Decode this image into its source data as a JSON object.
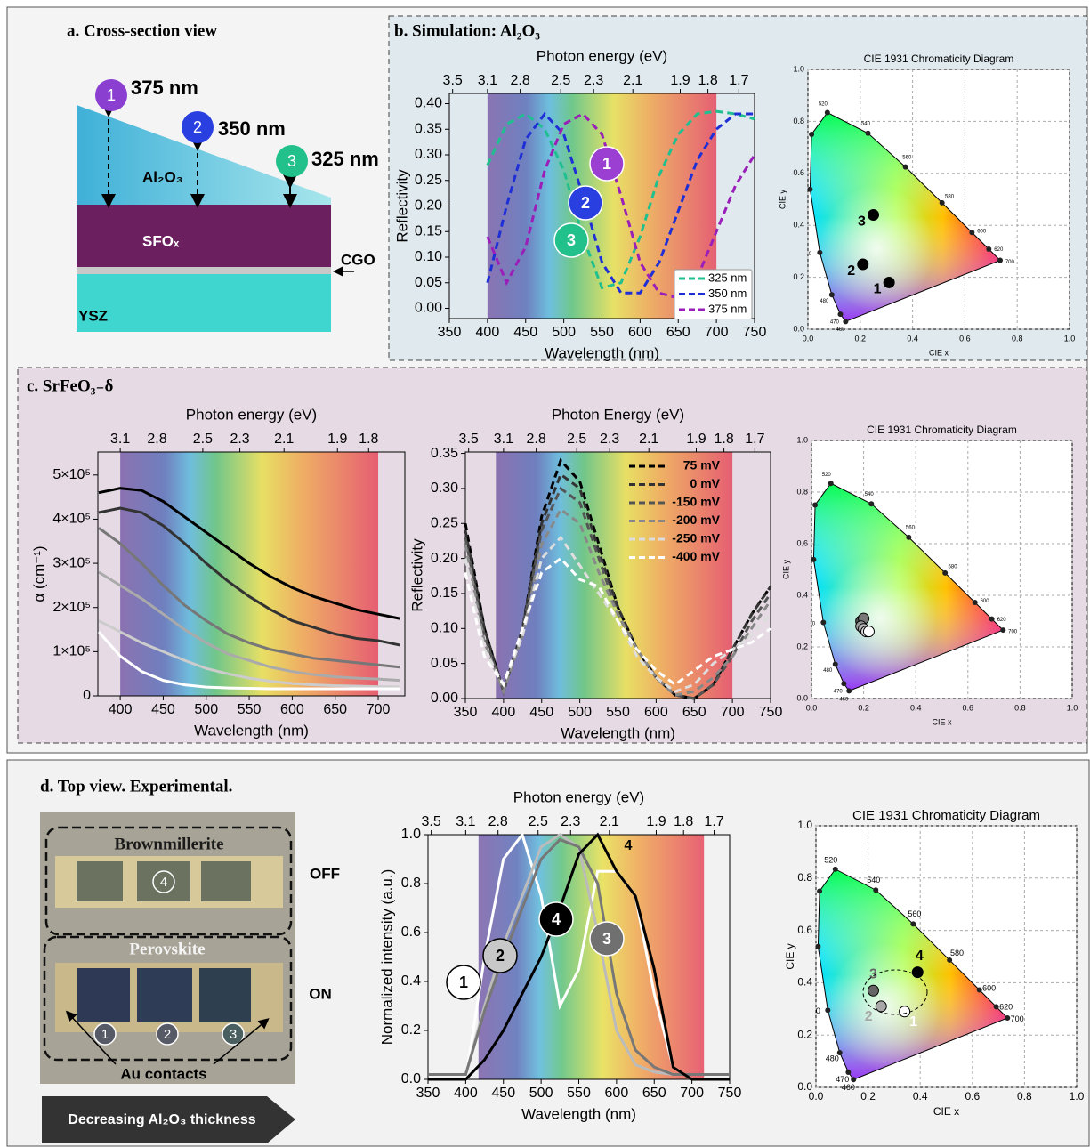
{
  "panel_a": {
    "title": "a. Cross-section view",
    "markers": [
      "1",
      "2",
      "3"
    ],
    "thickness_labels": [
      "375 nm",
      "350 nm",
      "325 nm"
    ],
    "layers": {
      "top": "Al₂O₃",
      "film": "SFOₓ",
      "interlayer": "CGO",
      "substrate": "YSZ"
    }
  },
  "panel_b": {
    "title": "b. Simulation: Al₂O₃"
  },
  "panel_c": {
    "title": "c. SrFeO₃₋δ"
  },
  "panel_d": {
    "title": "d. Top view. Experimental.",
    "phases": [
      "Brownmillerite",
      "Perovskite"
    ],
    "states": [
      "OFF",
      "ON"
    ],
    "markers": [
      "4",
      "1",
      "2",
      "3"
    ],
    "contacts": "Au contacts",
    "arrow": "Decreasing Al₂O₃ thickness"
  },
  "cie_locus": {
    "labels": [
      "460",
      "470",
      "480",
      "0",
      null,
      null,
      "520",
      "540",
      "560",
      "580",
      "600",
      "620",
      "700"
    ],
    "x": [
      0.144,
      0.1241,
      0.0913,
      0.0454,
      0.0082,
      0.0139,
      0.0743,
      0.2296,
      0.3731,
      0.5125,
      0.627,
      0.6915,
      0.7347
    ],
    "y": [
      0.0297,
      0.0578,
      0.1327,
      0.295,
      0.5384,
      0.7502,
      0.8338,
      0.7543,
      0.6245,
      0.4866,
      0.3725,
      0.3083,
      0.2653
    ]
  },
  "chart_data": [
    {
      "type": "line",
      "x2label": "Photon energy (eV)",
      "xlabel": "Wavelength (nm)",
      "ylabel": "Reflectivity",
      "dashed": true,
      "legend": "lower right",
      "legend_frame": true,
      "x": [
        400,
        425,
        450,
        475,
        500,
        525,
        550,
        575,
        600,
        625,
        650,
        675,
        700,
        725,
        750
      ],
      "series": [
        {
          "name": "325 nm",
          "color": "#1fbf8f",
          "values": [
            0.28,
            0.36,
            0.38,
            0.35,
            0.27,
            0.14,
            0.04,
            0.05,
            0.14,
            0.26,
            0.34,
            0.38,
            0.385,
            0.38,
            0.37
          ]
        },
        {
          "name": "350 nm",
          "color": "#1f2fd6",
          "values": [
            0.05,
            0.2,
            0.33,
            0.38,
            0.34,
            0.22,
            0.09,
            0.03,
            0.03,
            0.09,
            0.19,
            0.29,
            0.35,
            0.38,
            0.38
          ]
        },
        {
          "name": "375 nm",
          "color": "#9a1fb8",
          "values": [
            0.14,
            0.05,
            0.12,
            0.27,
            0.36,
            0.38,
            0.34,
            0.22,
            0.09,
            0.03,
            0.02,
            0.06,
            0.15,
            0.24,
            0.3
          ]
        }
      ],
      "xlim": [
        350,
        750
      ],
      "ylim": [
        -0.02,
        0.42
      ],
      "xticks": [
        350,
        400,
        450,
        500,
        550,
        600,
        650,
        700,
        750
      ],
      "yticks": [
        {
          "value": 0,
          "label": "0.00"
        },
        0.05,
        {
          "value": 0.1,
          "label": "0.10"
        },
        0.15,
        {
          "value": 0.2,
          "label": "0.20"
        },
        0.25,
        {
          "value": 0.3,
          "label": "0.30"
        },
        0.35,
        {
          "value": 0.4,
          "label": "0.40"
        }
      ],
      "x2ticks": [
        3.5,
        3.1,
        2.8,
        2.5,
        2.3,
        2.1,
        1.9,
        1.8,
        1.7
      ],
      "spectrum": [
        400,
        700
      ],
      "annotations": [
        {
          "text": "1",
          "color": "#9a3fd1"
        },
        {
          "text": "2",
          "color": "#2a3fe0"
        },
        {
          "text": "3",
          "color": "#22c08a"
        }
      ]
    },
    {
      "type": "scatter",
      "title": "CIE 1931 Chromaticity Diagram",
      "xlabel": "CIE x",
      "ylabel": "CIE y",
      "grid": true,
      "xlim": [
        0,
        1
      ],
      "ylim": [
        0,
        1
      ],
      "xticks": [
        {
          "value": 0,
          "label": "0.0"
        },
        0.2,
        0.4,
        0.6,
        0.8,
        {
          "value": 1,
          "label": "1.0"
        }
      ],
      "yticks": [
        {
          "value": 0,
          "label": "0.0"
        },
        0.2,
        0.4,
        0.6,
        0.8,
        {
          "value": 1,
          "label": "1.0"
        }
      ],
      "series": [
        {
          "color": "#000000",
          "x": [
            0.31,
            0.21,
            0.25
          ],
          "y": [
            0.18,
            0.25,
            0.44
          ],
          "labels": [
            "1",
            "2",
            "3"
          ]
        }
      ]
    },
    {
      "type": "line",
      "x2label": "Photon energy (eV)",
      "xlabel": "Wavelength (nm)",
      "ylabel": "α (cm⁻¹)",
      "dashed": false,
      "x": [
        375,
        400,
        425,
        450,
        475,
        500,
        525,
        550,
        575,
        600,
        625,
        650,
        675,
        700,
        725
      ],
      "series": [
        {
          "color": "#000000",
          "values": [
            460000,
            470000,
            465000,
            440000,
            405000,
            370000,
            335000,
            300000,
            270000,
            245000,
            225000,
            210000,
            195000,
            185000,
            175000
          ]
        },
        {
          "color": "#333333",
          "values": [
            415000,
            425000,
            415000,
            385000,
            345000,
            300000,
            260000,
            225000,
            195000,
            170000,
            155000,
            140000,
            130000,
            125000,
            115000
          ]
        },
        {
          "color": "#777777",
          "values": [
            380000,
            345000,
            300000,
            250000,
            205000,
            170000,
            140000,
            120000,
            105000,
            95000,
            85000,
            80000,
            75000,
            70000,
            65000
          ]
        },
        {
          "color": "#aaaaaa",
          "values": [
            280000,
            250000,
            220000,
            185000,
            150000,
            120000,
            95000,
            80000,
            65000,
            55000,
            48000,
            43000,
            40000,
            38000,
            35000
          ]
        },
        {
          "color": "#cccccc",
          "values": [
            170000,
            145000,
            120000,
            100000,
            80000,
            62000,
            50000,
            40000,
            33000,
            28000,
            25000,
            23000,
            22000,
            21000,
            20000
          ]
        },
        {
          "color": "#ffffff",
          "values": [
            145000,
            90000,
            55000,
            35000,
            25000,
            20000,
            18000,
            17000,
            16000,
            16000,
            16000,
            16000,
            16000,
            16000,
            16000
          ]
        }
      ],
      "xlim": [
        374,
        731
      ],
      "ylim": [
        0,
        552000
      ],
      "xticks": [
        400,
        450,
        500,
        550,
        600,
        650,
        700
      ],
      "yticks": [
        0,
        {
          "value": 100000,
          "label": "1×10⁵"
        },
        {
          "value": 200000,
          "label": "2×10⁵"
        },
        {
          "value": 300000,
          "label": "3×10⁵"
        },
        {
          "value": 400000,
          "label": "4×10⁵"
        },
        {
          "value": 500000,
          "label": "5×10⁵"
        }
      ],
      "x2ticks": [
        3.1,
        2.8,
        2.5,
        2.3,
        2.1,
        1.9,
        1.8
      ],
      "spectrum": [
        400,
        700
      ]
    },
    {
      "type": "line",
      "x2label": "Photon Energy (eV)",
      "xlabel": "Wavelength (nm)",
      "ylabel": "Reflectivity",
      "dashed": true,
      "legend": "upper right",
      "legend_frame": false,
      "x": [
        350,
        375,
        400,
        425,
        450,
        475,
        500,
        525,
        550,
        575,
        600,
        625,
        650,
        675,
        700,
        725,
        750
      ],
      "series": [
        {
          "name": "75 mV",
          "color": "#000000",
          "values": [
            0.25,
            0.1,
            0.01,
            0.1,
            0.26,
            0.34,
            0.31,
            0.22,
            0.13,
            0.07,
            0.03,
            0.005,
            0,
            0.02,
            0.07,
            0.12,
            0.16
          ]
        },
        {
          "name": "0 mV",
          "color": "#333333",
          "values": [
            0.24,
            0.1,
            0.01,
            0.1,
            0.25,
            0.32,
            0.3,
            0.21,
            0.13,
            0.07,
            0.03,
            0.005,
            0,
            0.02,
            0.07,
            0.12,
            0.16
          ]
        },
        {
          "name": "-150 mV",
          "color": "#555555",
          "values": [
            0.23,
            0.09,
            0.01,
            0.1,
            0.24,
            0.3,
            0.28,
            0.2,
            0.12,
            0.07,
            0.03,
            0.005,
            0,
            0.02,
            0.06,
            0.11,
            0.15
          ]
        },
        {
          "name": "-200 mV",
          "color": "#888888",
          "values": [
            0.22,
            0.08,
            0.01,
            0.09,
            0.22,
            0.27,
            0.25,
            0.18,
            0.12,
            0.07,
            0.03,
            0.005,
            0.01,
            0.03,
            0.06,
            0.1,
            0.14
          ]
        },
        {
          "name": "-250 mV",
          "color": "#dddddd",
          "values": [
            0.2,
            0.07,
            0.02,
            0.09,
            0.2,
            0.23,
            0.19,
            0.15,
            0.11,
            0.06,
            0.03,
            0.01,
            0.02,
            0.05,
            0.07,
            0.09,
            0.12
          ]
        },
        {
          "name": "-400 mV",
          "color": "#ffffff",
          "values": [
            0.18,
            0.06,
            0.02,
            0.1,
            0.18,
            0.2,
            0.17,
            0.16,
            0.11,
            0.07,
            0.04,
            0.02,
            0.04,
            0.06,
            0.07,
            0.08,
            0.1
          ]
        }
      ],
      "xlim": [
        350,
        750
      ],
      "ylim": [
        0,
        0.352
      ],
      "xticks": [
        350,
        400,
        450,
        500,
        550,
        600,
        650,
        700,
        750
      ],
      "yticks": [
        {
          "value": 0,
          "label": "0.00"
        },
        0.05,
        {
          "value": 0.1,
          "label": "0.10"
        },
        0.15,
        {
          "value": 0.2,
          "label": "0.20"
        },
        0.25,
        {
          "value": 0.3,
          "label": "0.30"
        },
        0.35
      ],
      "x2ticks": [
        3.5,
        3.1,
        2.8,
        2.5,
        2.3,
        2.1,
        1.9,
        1.8,
        1.7
      ],
      "spectrum": [
        390,
        700
      ]
    },
    {
      "type": "scatter",
      "title": "CIE 1931 Chromaticity Diagram",
      "xlabel": "CIE x",
      "ylabel": "CIE y",
      "grid": true,
      "xlim": [
        0,
        1
      ],
      "ylim": [
        0,
        1
      ],
      "xticks": [
        {
          "value": 0,
          "label": "0.0"
        },
        0.2,
        0.4,
        0.6,
        0.8,
        {
          "value": 1,
          "label": "1.0"
        }
      ],
      "yticks": [
        {
          "value": 0,
          "label": "0.0"
        },
        0.2,
        0.4,
        0.6,
        0.8,
        {
          "value": 1,
          "label": "1.0"
        }
      ],
      "series": [
        {
          "color": "#555555",
          "x": [
            0.19
          ],
          "y": [
            0.3
          ]
        },
        {
          "color": "#777777",
          "x": [
            0.2
          ],
          "y": [
            0.31
          ]
        },
        {
          "color": "#999999",
          "x": [
            0.19
          ],
          "y": [
            0.28
          ]
        },
        {
          "color": "#bbbbbb",
          "x": [
            0.2
          ],
          "y": [
            0.27
          ]
        },
        {
          "color": "#dddddd",
          "x": [
            0.21
          ],
          "y": [
            0.26
          ]
        },
        {
          "color": "#ffffff",
          "x": [
            0.22
          ],
          "y": [
            0.26
          ]
        }
      ]
    },
    {
      "type": "line",
      "x2label": "Photon energy (eV)",
      "xlabel": "Wavelength (nm)",
      "ylabel": "Normalized intensity (a.u.)",
      "dashed": false,
      "x": [
        350,
        375,
        400,
        425,
        450,
        475,
        500,
        525,
        550,
        575,
        600,
        625,
        650,
        675,
        700,
        725,
        750
      ],
      "series": [
        {
          "color": "#ffffff",
          "values": [
            0,
            0,
            0,
            0.5,
            0.9,
            1,
            0.75,
            0.3,
            0.45,
            0.85,
            0.85,
            0.75,
            0.35,
            0.05,
            0,
            0,
            0
          ]
        },
        {
          "color": "#bbbbbb",
          "values": [
            0.02,
            0.02,
            0.02,
            0.3,
            0.55,
            0.75,
            0.95,
            1,
            0.95,
            0.6,
            0.2,
            0.06,
            0.03,
            0.02,
            0.02,
            0.02,
            0.02
          ]
        },
        {
          "color": "#777777",
          "values": [
            0.02,
            0.02,
            0.02,
            0.28,
            0.5,
            0.7,
            0.9,
            0.98,
            0.95,
            0.8,
            0.35,
            0.12,
            0.05,
            0.02,
            0.02,
            0.02,
            0.02
          ]
        },
        {
          "color": "#000000",
          "values": [
            0,
            0,
            0,
            0.08,
            0.2,
            0.35,
            0.5,
            0.7,
            0.92,
            1,
            0.85,
            0.75,
            0.45,
            0.05,
            0,
            0,
            0
          ]
        }
      ],
      "xlim": [
        350,
        750
      ],
      "ylim": [
        0,
        1
      ],
      "xticks": [
        350,
        400,
        450,
        500,
        550,
        600,
        650,
        700,
        750
      ],
      "yticks": [
        {
          "value": 0,
          "label": "0.0"
        },
        0.2,
        0.4,
        0.6,
        0.8,
        {
          "value": 1,
          "label": "1.0"
        }
      ],
      "x2ticks": [
        3.5,
        3.1,
        2.8,
        2.5,
        2.3,
        2.1,
        1.9,
        1.8,
        1.7
      ],
      "spectrum": [
        417,
        716
      ],
      "annotations": [
        {
          "text": "1",
          "color": "#ffffff"
        },
        {
          "text": "2",
          "color": "#c8c8c8"
        },
        {
          "text": "3",
          "color": "#707070"
        },
        {
          "text": "4",
          "color": "#000000"
        },
        {
          "text": "4"
        }
      ]
    },
    {
      "type": "scatter",
      "title": "CIE 1931 Chromaticity Diagram",
      "xlabel": "CIE x",
      "ylabel": "CIE y",
      "grid": true,
      "xlim": [
        0,
        1
      ],
      "ylim": [
        0,
        1
      ],
      "xticks": [
        {
          "value": 0,
          "label": "0.0"
        },
        0.2,
        0.4,
        0.6,
        0.8,
        {
          "value": 1,
          "label": "1.0"
        }
      ],
      "yticks": [
        {
          "value": 0,
          "label": "0.0"
        },
        0.2,
        0.4,
        0.6,
        0.8,
        {
          "value": 1,
          "label": "1.0"
        }
      ],
      "series": [
        {
          "color": "#ffffff",
          "x": [
            0.34
          ],
          "y": [
            0.29
          ],
          "labels": [
            "1"
          ]
        },
        {
          "color": "#a8a8a8",
          "x": [
            0.25
          ],
          "y": [
            0.31
          ],
          "labels": [
            "2"
          ]
        },
        {
          "color": "#666666",
          "x": [
            0.22
          ],
          "y": [
            0.37
          ],
          "labels": [
            "3"
          ]
        },
        {
          "color": "#000000",
          "x": [
            0.39
          ],
          "y": [
            0.44
          ],
          "labels": [
            "4"
          ]
        }
      ]
    }
  ]
}
